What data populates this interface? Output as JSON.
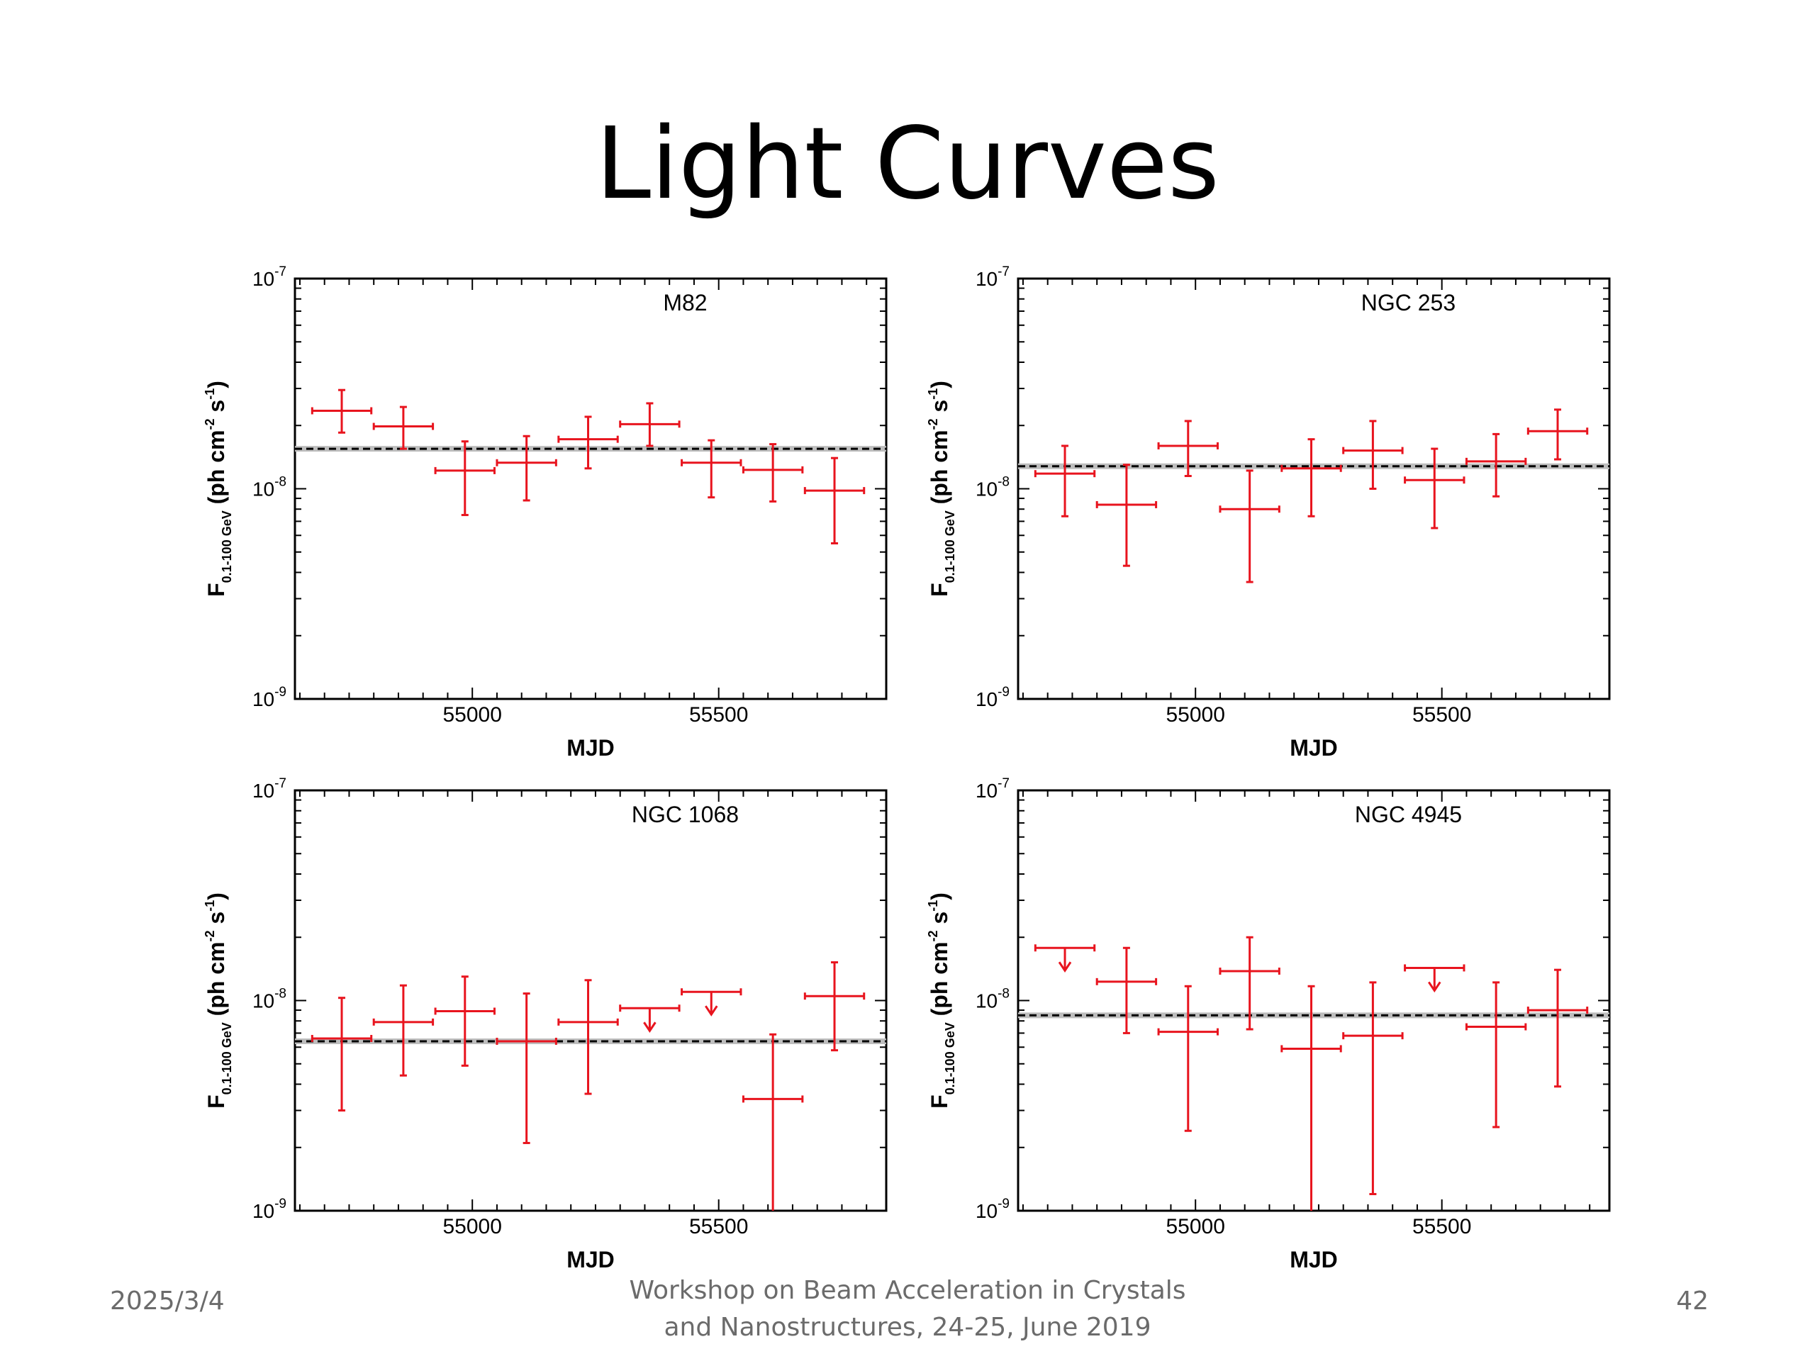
{
  "slide": {
    "title": "Light Curves",
    "footer_date": "2025/3/4",
    "footer_line1": "Workshop on Beam Acceleration in Crystals",
    "footer_line2": "and Nanostructures, 24-25, June 2019",
    "page_number": "42"
  },
  "colors": {
    "data": "#e8141e",
    "reference_line": "#000000",
    "frame": "#000000"
  },
  "chart_data": [
    {
      "type": "scatter",
      "title": "M82",
      "xlabel": "MJD",
      "ylabel": "F0.1-100 GeV (ph cm-2 s-1)",
      "xlim": [
        54640,
        55840
      ],
      "ylim": [
        1e-09,
        1e-07
      ],
      "yscale": "log",
      "xticks": [
        55000,
        55500
      ],
      "reference_flux": 1.55e-08,
      "points": [
        {
          "x": 54735,
          "y": 2.35e-08,
          "xerr": 60,
          "ylo": 1.85e-08,
          "yhi": 2.95e-08
        },
        {
          "x": 54860,
          "y": 1.98e-08,
          "xerr": 60,
          "ylo": 1.55e-08,
          "yhi": 2.45e-08
        },
        {
          "x": 54985,
          "y": 1.22e-08,
          "xerr": 60,
          "ylo": 7.5e-09,
          "yhi": 1.68e-08
        },
        {
          "x": 55110,
          "y": 1.33e-08,
          "xerr": 60,
          "ylo": 8.8e-09,
          "yhi": 1.78e-08
        },
        {
          "x": 55235,
          "y": 1.72e-08,
          "xerr": 60,
          "ylo": 1.25e-08,
          "yhi": 2.2e-08
        },
        {
          "x": 55360,
          "y": 2.03e-08,
          "xerr": 60,
          "ylo": 1.6e-08,
          "yhi": 2.55e-08
        },
        {
          "x": 55485,
          "y": 1.33e-08,
          "xerr": 60,
          "ylo": 9.1e-09,
          "yhi": 1.7e-08
        },
        {
          "x": 55610,
          "y": 1.23e-08,
          "xerr": 60,
          "ylo": 8.7e-09,
          "yhi": 1.63e-08
        },
        {
          "x": 55735,
          "y": 9.8e-09,
          "xerr": 60,
          "ylo": 5.5e-09,
          "yhi": 1.4e-08
        }
      ],
      "upper_limits": []
    },
    {
      "type": "scatter",
      "title": "NGC 253",
      "xlabel": "MJD",
      "ylabel": "F0.1-100 GeV (ph cm-2 s-1)",
      "xlim": [
        54640,
        55840
      ],
      "ylim": [
        1e-09,
        1e-07
      ],
      "yscale": "log",
      "xticks": [
        55000,
        55500
      ],
      "reference_flux": 1.28e-08,
      "points": [
        {
          "x": 54735,
          "y": 1.18e-08,
          "xerr": 60,
          "ylo": 7.4e-09,
          "yhi": 1.6e-08
        },
        {
          "x": 54860,
          "y": 8.4e-09,
          "xerr": 60,
          "ylo": 4.3e-09,
          "yhi": 1.3e-08
        },
        {
          "x": 54985,
          "y": 1.6e-08,
          "xerr": 60,
          "ylo": 1.15e-08,
          "yhi": 2.1e-08
        },
        {
          "x": 55110,
          "y": 8e-09,
          "xerr": 60,
          "ylo": 3.6e-09,
          "yhi": 1.22e-08
        },
        {
          "x": 55235,
          "y": 1.25e-08,
          "xerr": 60,
          "ylo": 7.4e-09,
          "yhi": 1.72e-08
        },
        {
          "x": 55360,
          "y": 1.52e-08,
          "xerr": 60,
          "ylo": 1e-08,
          "yhi": 2.1e-08
        },
        {
          "x": 55485,
          "y": 1.1e-08,
          "xerr": 60,
          "ylo": 6.5e-09,
          "yhi": 1.55e-08
        },
        {
          "x": 55610,
          "y": 1.35e-08,
          "xerr": 60,
          "ylo": 9.2e-09,
          "yhi": 1.82e-08
        },
        {
          "x": 55735,
          "y": 1.88e-08,
          "xerr": 60,
          "ylo": 1.38e-08,
          "yhi": 2.38e-08
        }
      ],
      "upper_limits": []
    },
    {
      "type": "scatter",
      "title": "NGC 1068",
      "xlabel": "MJD",
      "ylabel": "F0.1-100 GeV (ph cm-2 s-1)",
      "xlim": [
        54640,
        55840
      ],
      "ylim": [
        1e-09,
        1e-07
      ],
      "yscale": "log",
      "xticks": [
        55000,
        55500
      ],
      "reference_flux": 6.4e-09,
      "points": [
        {
          "x": 54735,
          "y": 6.6e-09,
          "xerr": 60,
          "ylo": 3e-09,
          "yhi": 1.03e-08
        },
        {
          "x": 54860,
          "y": 7.9e-09,
          "xerr": 60,
          "ylo": 4.4e-09,
          "yhi": 1.18e-08
        },
        {
          "x": 54985,
          "y": 8.9e-09,
          "xerr": 60,
          "ylo": 4.9e-09,
          "yhi": 1.3e-08
        },
        {
          "x": 55110,
          "y": 6.4e-09,
          "xerr": 60,
          "ylo": 2.1e-09,
          "yhi": 1.08e-08
        },
        {
          "x": 55235,
          "y": 7.9e-09,
          "xerr": 60,
          "ylo": 3.6e-09,
          "yhi": 1.25e-08
        },
        {
          "x": 55610,
          "y": 3.4e-09,
          "xerr": 60,
          "ylo": 1e-09,
          "yhi": 6.9e-09
        },
        {
          "x": 55735,
          "y": 1.05e-08,
          "xerr": 60,
          "ylo": 5.8e-09,
          "yhi": 1.52e-08
        }
      ],
      "upper_limits": [
        {
          "x": 55360,
          "y": 9.2e-09,
          "xerr": 60
        },
        {
          "x": 55485,
          "y": 1.1e-08,
          "xerr": 60
        }
      ]
    },
    {
      "type": "scatter",
      "title": "NGC 4945",
      "xlabel": "MJD",
      "ylabel": "F0.1-100 GeV (ph cm-2 s-1)",
      "xlim": [
        54640,
        55840
      ],
      "ylim": [
        1e-09,
        1e-07
      ],
      "yscale": "log",
      "xticks": [
        55000,
        55500
      ],
      "reference_flux": 8.5e-09,
      "points": [
        {
          "x": 54860,
          "y": 1.23e-08,
          "xerr": 60,
          "ylo": 7e-09,
          "yhi": 1.78e-08
        },
        {
          "x": 54985,
          "y": 7.1e-09,
          "xerr": 60,
          "ylo": 2.4e-09,
          "yhi": 1.17e-08
        },
        {
          "x": 55110,
          "y": 1.38e-08,
          "xerr": 60,
          "ylo": 7.3e-09,
          "yhi": 2e-08
        },
        {
          "x": 55235,
          "y": 5.9e-09,
          "xerr": 60,
          "ylo": 1e-09,
          "yhi": 1.17e-08
        },
        {
          "x": 55360,
          "y": 6.8e-09,
          "xerr": 60,
          "ylo": 1.2e-09,
          "yhi": 1.22e-08
        },
        {
          "x": 55610,
          "y": 7.5e-09,
          "xerr": 60,
          "ylo": 2.5e-09,
          "yhi": 1.22e-08
        },
        {
          "x": 55735,
          "y": 9e-09,
          "xerr": 60,
          "ylo": 3.9e-09,
          "yhi": 1.4e-08
        }
      ],
      "upper_limits": [
        {
          "x": 54735,
          "y": 1.78e-08,
          "xerr": 60
        },
        {
          "x": 55485,
          "y": 1.43e-08,
          "xerr": 60
        }
      ]
    }
  ]
}
